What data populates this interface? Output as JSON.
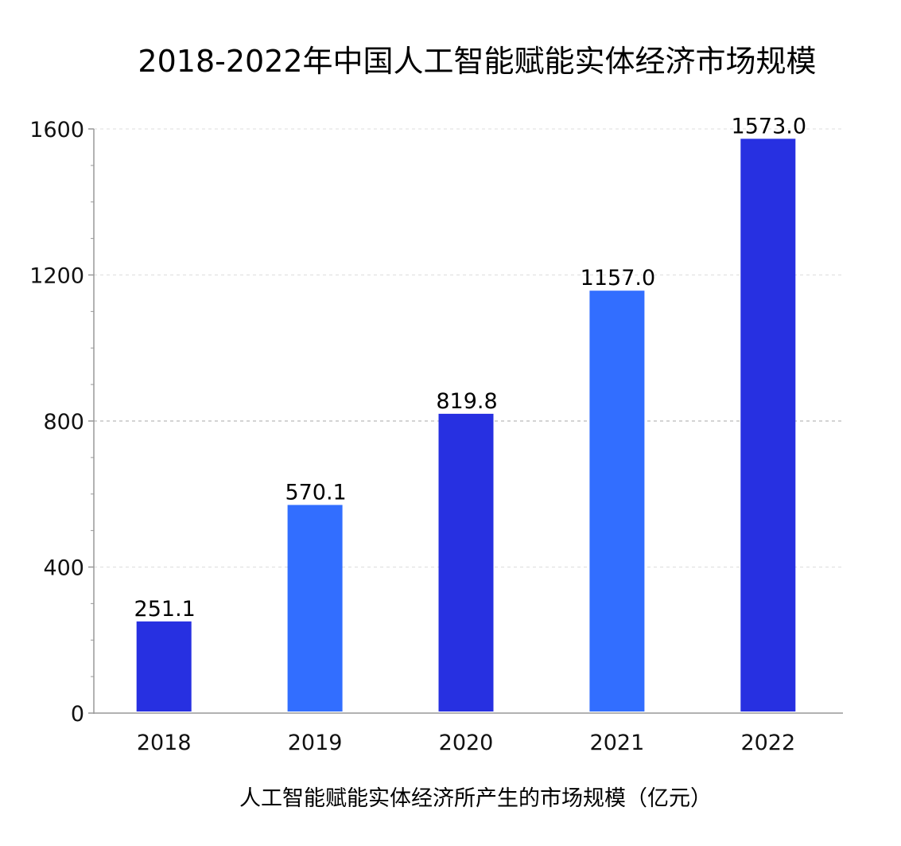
{
  "chart_data": {
    "type": "bar",
    "title": "2018-2022年中国人工智能赋能实体经济市场规模",
    "xlabel": "人工智能赋能实体经济所产生的市场规模（亿元）",
    "ylabel": "",
    "categories": [
      "2018",
      "2019",
      "2020",
      "2021",
      "2022"
    ],
    "values": [
      251.1,
      570.1,
      819.8,
      1157.0,
      1573.0
    ],
    "data_labels": [
      "251.1",
      "570.1",
      "819.8",
      "1157.0",
      "1573.0"
    ],
    "ylim": [
      0,
      1600
    ],
    "yticks": [
      0,
      400,
      800,
      1200,
      1600
    ],
    "ytick_labels": [
      "0",
      "400",
      "800",
      "1200",
      "1600"
    ],
    "grid": true,
    "legend": "none",
    "colors": {
      "dark_blue": "#2730E1",
      "light_blue": "#326EFF",
      "axis": "#999999",
      "grid": "#dddddd"
    },
    "bar_colors": [
      "#2730E1",
      "#326EFF",
      "#2730E1",
      "#326EFF",
      "#2730E1"
    ]
  }
}
